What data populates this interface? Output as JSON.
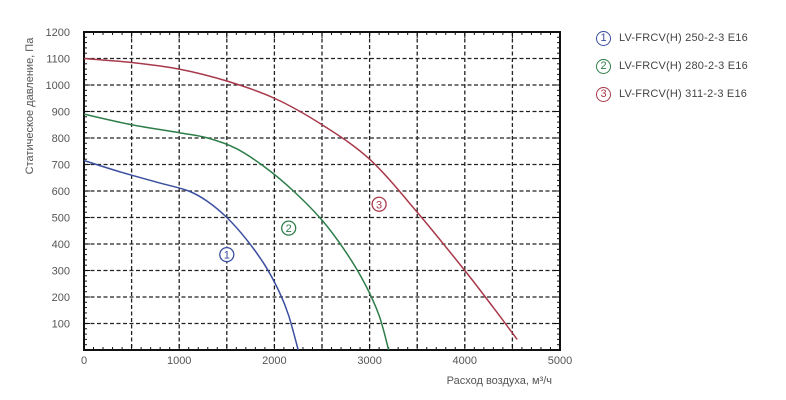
{
  "chart_data": {
    "type": "line",
    "xlabel": "Расход воздуха, м³/ч",
    "ylabel": "Статическое давление, Па",
    "xlim": [
      0,
      5000
    ],
    "ylim": [
      0,
      1200
    ],
    "x_ticks": [
      0,
      1000,
      2000,
      3000,
      4000,
      5000
    ],
    "y_ticks": [
      100,
      200,
      300,
      400,
      500,
      600,
      700,
      800,
      900,
      1000,
      1100,
      1200
    ],
    "grid": true,
    "legend_position": "top-right",
    "series": [
      {
        "name": "LV-FRCV(H) 250-2-3 E16",
        "marker": "1",
        "color": "#3a4e9e",
        "points": [
          [
            0,
            715
          ],
          [
            400,
            670
          ],
          [
            800,
            630
          ],
          [
            1100,
            600
          ],
          [
            1300,
            560
          ],
          [
            1500,
            500
          ],
          [
            1700,
            420
          ],
          [
            1900,
            320
          ],
          [
            2050,
            220
          ],
          [
            2150,
            130
          ],
          [
            2250,
            0
          ]
        ],
        "label_at": [
          1500,
          360
        ]
      },
      {
        "name": "LV-FRCV(H) 280-2-3 E16",
        "marker": "2",
        "color": "#2e7d4a",
        "points": [
          [
            0,
            890
          ],
          [
            500,
            850
          ],
          [
            1000,
            820
          ],
          [
            1300,
            800
          ],
          [
            1600,
            760
          ],
          [
            1900,
            690
          ],
          [
            2200,
            600
          ],
          [
            2500,
            490
          ],
          [
            2750,
            370
          ],
          [
            2950,
            250
          ],
          [
            3100,
            130
          ],
          [
            3200,
            0
          ]
        ],
        "label_at": [
          2150,
          460
        ]
      },
      {
        "name": "LV-FRCV(H) 311-2-3 E16",
        "marker": "3",
        "color": "#a8394a",
        "points": [
          [
            0,
            1100
          ],
          [
            500,
            1085
          ],
          [
            1000,
            1060
          ],
          [
            1500,
            1015
          ],
          [
            2000,
            950
          ],
          [
            2500,
            850
          ],
          [
            3000,
            720
          ],
          [
            3500,
            520
          ],
          [
            4000,
            300
          ],
          [
            4300,
            160
          ],
          [
            4550,
            40
          ]
        ],
        "label_at": [
          3100,
          550
        ]
      }
    ]
  }
}
